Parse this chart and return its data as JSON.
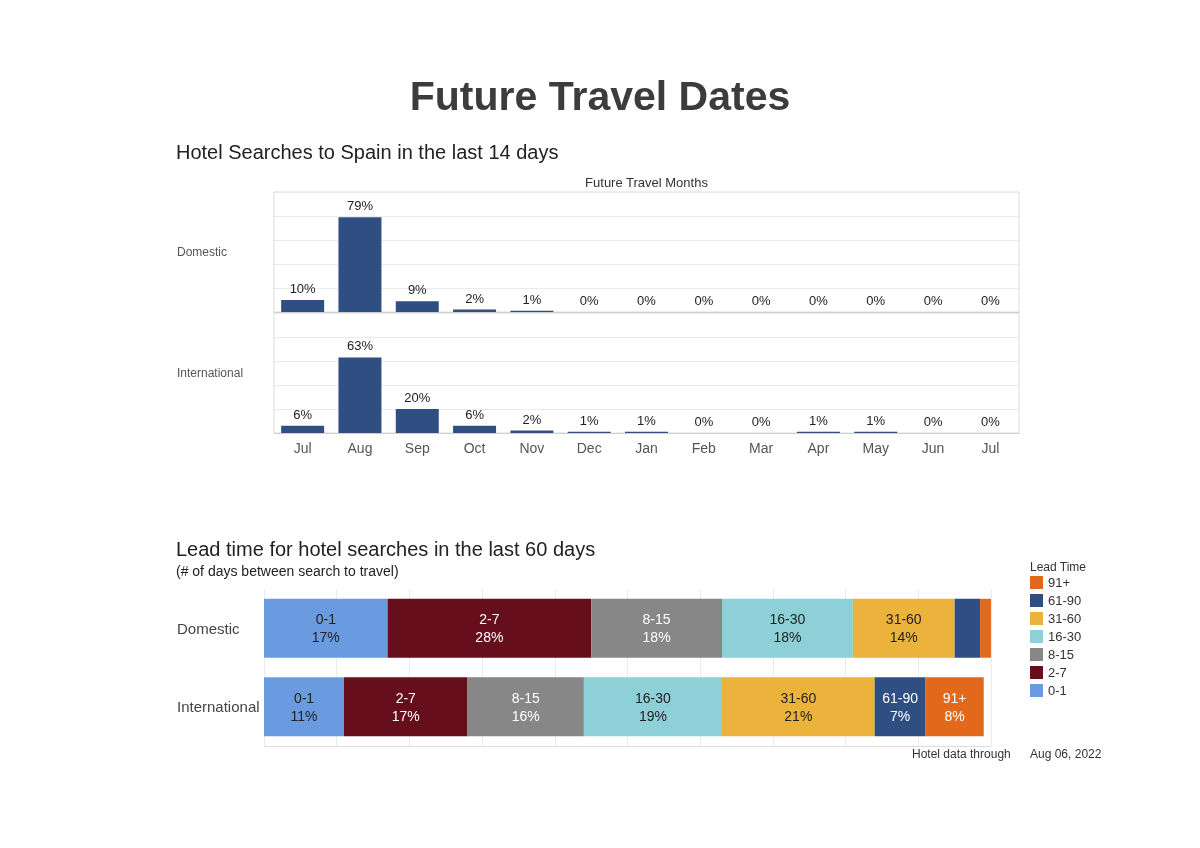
{
  "chart_data": [
    {
      "type": "bar",
      "title": "Future Travel Dates",
      "subtitle": "Hotel Searches to Spain in the last 14 days",
      "xlabel": "Future Travel Months",
      "ylabel": "Domestic",
      "categories": [
        "Jul",
        "Aug",
        "Sep",
        "Oct",
        "Nov",
        "Dec",
        "Jan",
        "Feb",
        "Mar",
        "Apr",
        "May",
        "Jun",
        "Jul"
      ],
      "values": [
        10,
        79,
        9,
        2,
        1,
        0,
        0,
        0,
        0,
        0,
        0,
        0,
        0
      ],
      "value_labels": [
        "10%",
        "79%",
        "9%",
        "2%",
        "1%",
        "0%",
        "0%",
        "0%",
        "0%",
        "0%",
        "0%",
        "0%",
        "0%"
      ],
      "color": "#2f4f82",
      "ylim": [
        0,
        100
      ],
      "yticks": [
        {
          "value": 0,
          "label": null
        },
        {
          "value": 20,
          "label": null
        },
        {
          "value": 40,
          "label": null
        },
        {
          "value": 60,
          "label": null
        },
        {
          "value": 80,
          "label": null
        },
        {
          "value": 100,
          "label": null
        }
      ],
      "grid": "y",
      "tick_labels": false
    },
    {
      "type": "bar",
      "ylabel": "International",
      "categories": [
        "Jul",
        "Aug",
        "Sep",
        "Oct",
        "Nov",
        "Dec",
        "Jan",
        "Feb",
        "Mar",
        "Apr",
        "May",
        "Jun",
        "Jul"
      ],
      "values": [
        6,
        63,
        20,
        6,
        2,
        1,
        1,
        0,
        0,
        1,
        1,
        0,
        0
      ],
      "value_labels": [
        "6%",
        "63%",
        "20%",
        "6%",
        "2%",
        "1%",
        "1%",
        "0%",
        "0%",
        "1%",
        "1%",
        "0%",
        "0%"
      ],
      "color": "#2f4f82",
      "ylim": [
        0,
        100
      ],
      "yticks": [
        {
          "value": 0,
          "label": null
        },
        {
          "value": 20,
          "label": null
        },
        {
          "value": 40,
          "label": null
        },
        {
          "value": 60,
          "label": null
        },
        {
          "value": 80,
          "label": null
        },
        {
          "value": 100,
          "label": null
        }
      ],
      "grid": "y",
      "tick_labels": "x"
    },
    {
      "type": "bar",
      "orientation": "horizontal",
      "stacked": true,
      "title": "Lead time for hotel searches in the last 60 days",
      "subtitle": "(# of days between search to travel)",
      "categories": [
        "Domestic",
        "International"
      ],
      "series": [
        {
          "name": "0-1",
          "color": "#6a9be0",
          "values": [
            17,
            11
          ],
          "value_labels": [
            "17%",
            "11%"
          ]
        },
        {
          "name": "2-7",
          "color": "#660e1c",
          "values": [
            28,
            17
          ],
          "value_labels": [
            "28%",
            "17%"
          ]
        },
        {
          "name": "8-15",
          "color": "#878787",
          "values": [
            18,
            16
          ],
          "value_labels": [
            "18%",
            "16%"
          ]
        },
        {
          "name": "16-30",
          "color": "#8dd0d8",
          "values": [
            18,
            19
          ],
          "value_labels": [
            "18%",
            "19%"
          ]
        },
        {
          "name": "31-60",
          "color": "#ebb33b",
          "values": [
            14,
            21
          ],
          "value_labels": [
            "14%",
            "21%"
          ]
        },
        {
          "name": "61-90",
          "color": "#2f4f82",
          "values": [
            3.5,
            7
          ],
          "value_labels": [
            null,
            "7%"
          ]
        },
        {
          "name": "91+",
          "color": "#e2681c",
          "values": [
            1.5,
            8
          ],
          "value_labels": [
            null,
            "8%"
          ]
        }
      ],
      "legend_title": "Lead Time",
      "legend": "right",
      "xlim": [
        0,
        100
      ],
      "xticks": [
        {
          "value": 0,
          "label": null
        },
        {
          "value": 10,
          "label": null
        },
        {
          "value": 20,
          "label": null
        },
        {
          "value": 30,
          "label": null
        },
        {
          "value": 40,
          "label": null
        },
        {
          "value": 50,
          "label": null
        },
        {
          "value": 60,
          "label": null
        },
        {
          "value": 70,
          "label": null
        },
        {
          "value": 80,
          "label": null
        },
        {
          "value": 90,
          "label": null
        },
        {
          "value": 100,
          "label": null
        }
      ],
      "grid": "x",
      "tick_labels": "y",
      "annotations": [
        "Hotel data through",
        "Aug 06, 2022"
      ]
    }
  ]
}
